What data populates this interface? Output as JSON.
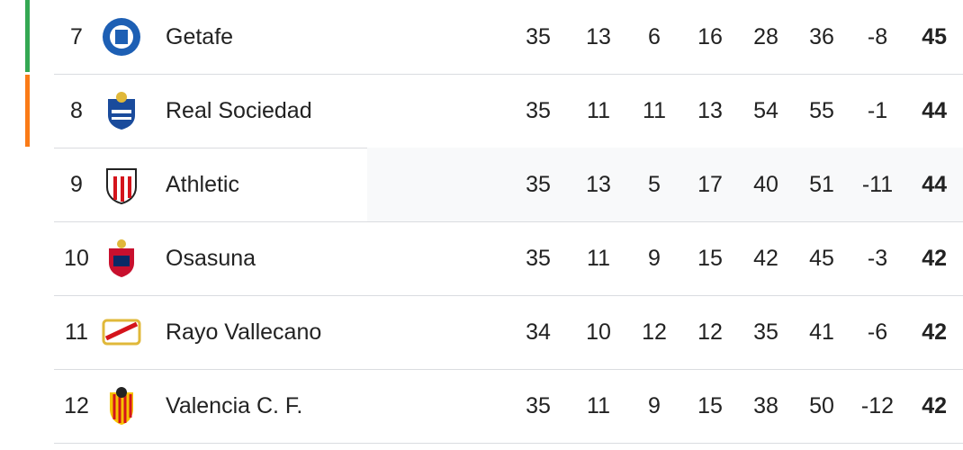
{
  "table": {
    "rows": [
      {
        "rank": 7,
        "team": "Getafe",
        "stats": [
          35,
          13,
          6,
          16,
          28,
          36,
          -8
        ],
        "points": 45
      },
      {
        "rank": 8,
        "team": "Real Sociedad",
        "stats": [
          35,
          11,
          11,
          13,
          54,
          55,
          -1
        ],
        "points": 44
      },
      {
        "rank": 9,
        "team": "Athletic",
        "stats": [
          35,
          13,
          5,
          17,
          40,
          51,
          -11
        ],
        "points": 44
      },
      {
        "rank": 10,
        "team": "Osasuna",
        "stats": [
          35,
          11,
          9,
          15,
          42,
          45,
          -3
        ],
        "points": 42
      },
      {
        "rank": 11,
        "team": "Rayo Vallecano",
        "stats": [
          34,
          10,
          12,
          12,
          35,
          41,
          -6
        ],
        "points": 42
      },
      {
        "rank": 12,
        "team": "Valencia C. F.",
        "stats": [
          35,
          11,
          9,
          15,
          38,
          50,
          -12
        ],
        "points": 42
      }
    ]
  }
}
